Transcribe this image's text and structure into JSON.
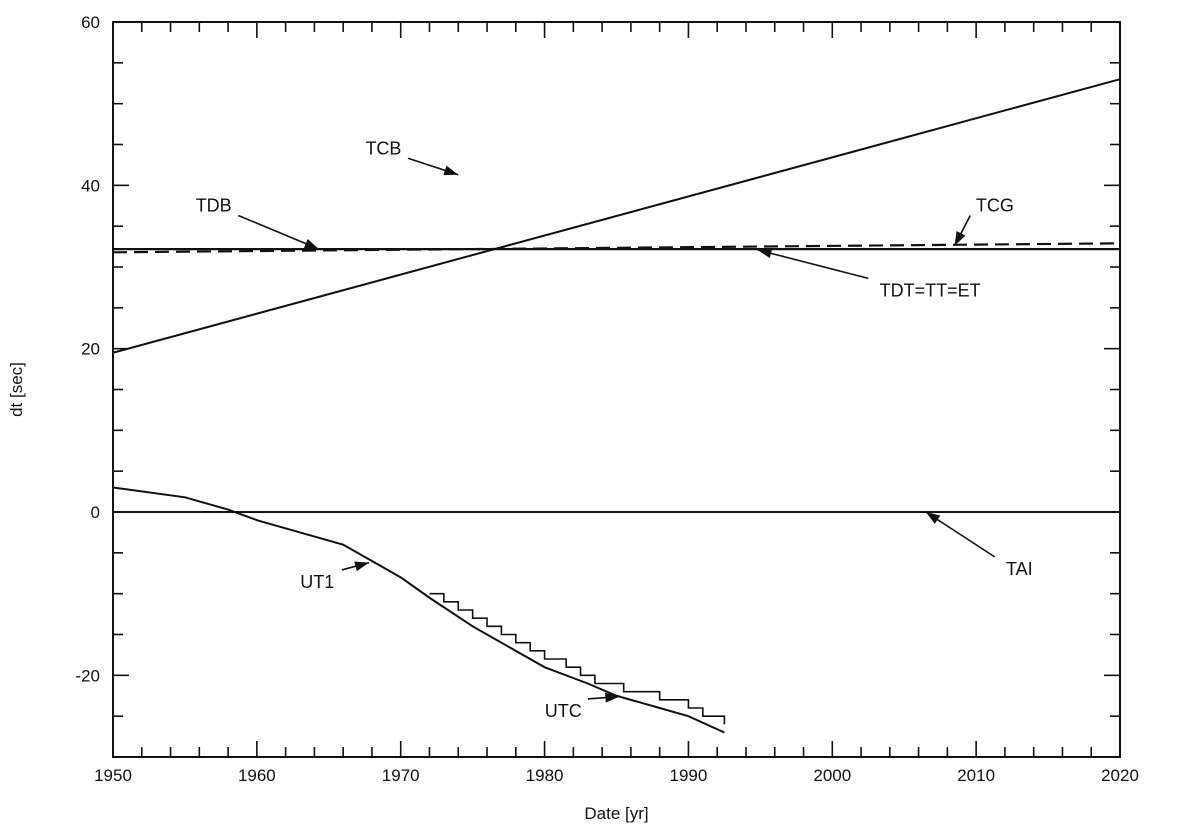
{
  "chart_data": {
    "type": "line",
    "title": "",
    "xlabel": "Date [yr]",
    "ylabel": "dt [sec]",
    "xlim": [
      1950,
      2020
    ],
    "ylim": [
      -30,
      60
    ],
    "xticks": [
      1950,
      1960,
      1970,
      1980,
      1990,
      2000,
      2010,
      2020
    ],
    "xtick_labels": [
      "1950",
      "1960",
      "1970",
      "1980",
      "1990",
      "2000",
      "2010",
      "2020"
    ],
    "yticks": [
      -20,
      0,
      20,
      40,
      60
    ],
    "ytick_labels": [
      "-20",
      "0",
      "20",
      "40",
      "60"
    ],
    "grid": false,
    "legend": "none",
    "line_color": "#111111",
    "series": [
      {
        "name": "TCB",
        "style": "solid",
        "x": [
          1950,
          2020
        ],
        "y": [
          19.5,
          53
        ]
      },
      {
        "name": "TCG",
        "style": "dashed",
        "x": [
          1950,
          2020
        ],
        "y": [
          31.8,
          32.9
        ]
      },
      {
        "name": "TDB",
        "style": "solid",
        "x": [
          1950,
          2020
        ],
        "y": [
          32.2,
          32.2
        ]
      },
      {
        "name": "TDT=TT=ET",
        "style": "solid",
        "x": [
          1950,
          2020
        ],
        "y": [
          32.18,
          32.18
        ]
      },
      {
        "name": "TAI",
        "style": "solid",
        "x": [
          1950,
          2020
        ],
        "y": [
          0,
          0
        ]
      },
      {
        "name": "UT1",
        "style": "solid",
        "x": [
          1950,
          1955,
          1958,
          1960,
          1963,
          1966,
          1968,
          1970,
          1972,
          1975,
          1978,
          1980,
          1983,
          1985,
          1988,
          1990,
          1992.5
        ],
        "y": [
          3,
          1.8,
          0.3,
          -1,
          -2.5,
          -4,
          -6,
          -8,
          -10.5,
          -14,
          -17,
          -19,
          -21,
          -22.5,
          -24,
          -25,
          -27
        ]
      },
      {
        "name": "UTC",
        "style": "step",
        "x": [
          1972,
          1973,
          1974,
          1975,
          1976,
          1977,
          1978,
          1979,
          1980,
          1981.5,
          1982.5,
          1983.5,
          1985.5,
          1988,
          1990,
          1991,
          1992.5
        ],
        "y": [
          -10,
          -11,
          -12,
          -13,
          -14,
          -15,
          -16,
          -17,
          -18,
          -19,
          -20,
          -21,
          -22,
          -23,
          -24,
          -25,
          -26
        ]
      }
    ],
    "annotations": [
      {
        "text": "TCB",
        "x": 1968.8,
        "y": 43.8,
        "target_x": 1974,
        "target_y": 41.3
      },
      {
        "text": "TDB",
        "x": 1957.0,
        "y": 36.8,
        "target_x": 1964.3,
        "target_y": 32.2
      },
      {
        "text": "TCG",
        "x": 2011.3,
        "y": 36.8,
        "target_x": 2008.5,
        "target_y": 32.6
      },
      {
        "text": "TDT=TT=ET",
        "x": 2006.8,
        "y": 26.4,
        "target_x": 1994.8,
        "target_y": 32.1
      },
      {
        "text": "TAI",
        "x": 2013.0,
        "y": -7.7,
        "target_x": 2006.5,
        "target_y": 0
      },
      {
        "text": "UT1",
        "x": 1964.2,
        "y": -9.3,
        "target_x": 1967.8,
        "target_y": -6.2
      },
      {
        "text": "UTC",
        "x": 1981.3,
        "y": -25.1,
        "target_x": 1985.2,
        "target_y": -22.6
      }
    ]
  }
}
